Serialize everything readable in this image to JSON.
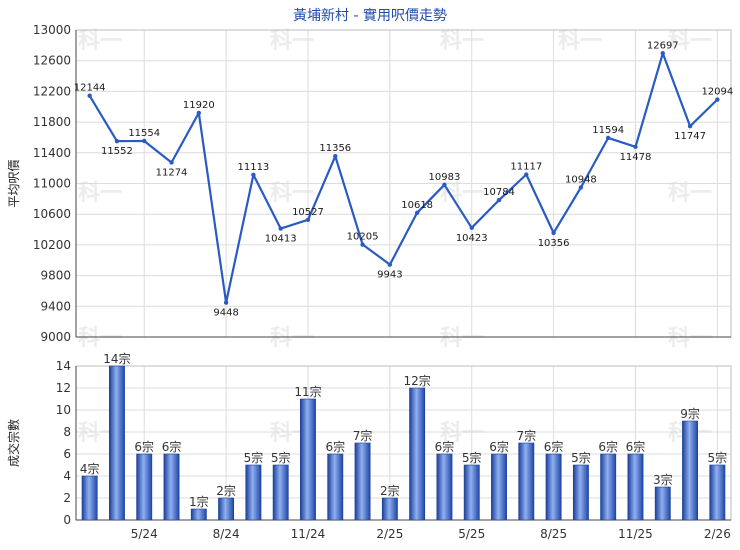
{
  "watermark": "科一",
  "chart_data": [
    {
      "type": "line",
      "title": "黃埔新村 - 實用呎價走勢",
      "ylabel": "平均呎價",
      "ylim": [
        9000,
        13000
      ],
      "yticks": [
        9000,
        9400,
        9800,
        10200,
        10600,
        11000,
        11400,
        11800,
        12200,
        12600,
        13000
      ],
      "grid": true,
      "color": "#2a5bc4",
      "values": [
        12144,
        11552,
        11554,
        11274,
        11920,
        9448,
        11113,
        10413,
        10527,
        11356,
        10205,
        9943,
        10618,
        10983,
        10423,
        10784,
        11117,
        10356,
        10948,
        11594,
        11478,
        12697,
        11747,
        12094
      ]
    },
    {
      "type": "bar",
      "ylabel": "成交宗數",
      "ylim": [
        0,
        14
      ],
      "yticks": [
        0,
        2,
        4,
        6,
        8,
        10,
        12,
        14
      ],
      "grid": true,
      "color": "#3a6fd8",
      "unit_suffix": "宗",
      "values": [
        4,
        14,
        6,
        6,
        1,
        2,
        5,
        5,
        11,
        6,
        7,
        2,
        12,
        6,
        5,
        6,
        7,
        6,
        5,
        6,
        6,
        3,
        9,
        5
      ],
      "x_tick_labels": [
        {
          "index": 2,
          "label": "5/24"
        },
        {
          "index": 5,
          "label": "8/24"
        },
        {
          "index": 8,
          "label": "11/24"
        },
        {
          "index": 11,
          "label": "2/25"
        },
        {
          "index": 14,
          "label": "5/25"
        },
        {
          "index": 17,
          "label": "8/25"
        },
        {
          "index": 20,
          "label": "11/25"
        },
        {
          "index": 23,
          "label": "2/26"
        }
      ]
    }
  ]
}
